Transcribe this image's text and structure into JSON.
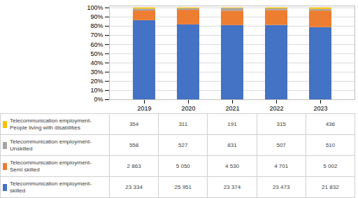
{
  "chart_data": {
    "type": "bar",
    "stacked": true,
    "categories": [
      "2019",
      "2020",
      "2021",
      "2022",
      "2023"
    ],
    "series": [
      {
        "name": "Telecommunication employment-\nskilled",
        "color": "#4472C4",
        "values": [
          0.860747,
          0.81507,
          0.808062,
          0.809525,
          0.785889
        ]
      },
      {
        "name": "Telecommunication employment-\nSemi skilled",
        "color": "#ED7D31",
        "values": [
          0.105611,
          0.158611,
          0.156607,
          0.162126,
          0.180058
        ]
      },
      {
        "name": "Telecommunication employment-\nUnskilled",
        "color": "#A5A5A5",
        "values": [
          0.020584,
          0.016552,
          0.028728,
          0.017485,
          0.018359
        ]
      },
      {
        "name": "Telecommunication employment-\nPeople living with disabilities",
        "color": "#FFC000",
        "values": [
          0.013058,
          0.009768,
          0.006603,
          0.010864,
          0.015695
        ]
      }
    ],
    "ylim": [
      0,
      1.02
    ],
    "yticks": [
      {
        "value": 0.0,
        "label": "0%"
      },
      {
        "value": 0.1,
        "label": "10%"
      },
      {
        "value": 0.2,
        "label": "20%"
      },
      {
        "value": 0.3,
        "label": "30%"
      },
      {
        "value": 0.4,
        "label": "40%"
      },
      {
        "value": 0.5,
        "label": "50%"
      },
      {
        "value": 0.6,
        "label": "60%"
      },
      {
        "value": 0.7,
        "label": "70%"
      },
      {
        "value": 0.8,
        "label": "80%"
      },
      {
        "value": 0.9,
        "label": "90%"
      },
      {
        "value": 1.0,
        "label": "100%"
      }
    ],
    "grid": true,
    "table": [
      {
        "label": "Telecommunication employment-\nPeople living with disabilities",
        "color": "#FFC000",
        "cells": [
          "354",
          "311",
          "191",
          "315",
          "436"
        ]
      },
      {
        "label": "Telecommunication employment-\nUnskilled",
        "color": "#A5A5A5",
        "cells": [
          "558",
          "527",
          "831",
          "507",
          "510"
        ]
      },
      {
        "label": "Telecommunication employment-\nSemi skilled",
        "color": "#ED7D31",
        "cells": [
          "2 863",
          "5 050",
          "4 530",
          "4 701",
          "5 002"
        ]
      },
      {
        "label": "Telecommunication employment-\nskilled",
        "color": "#4472C4",
        "cells": [
          "23 334",
          "25 951",
          "23 374",
          "23 473",
          "21 832"
        ]
      }
    ]
  }
}
